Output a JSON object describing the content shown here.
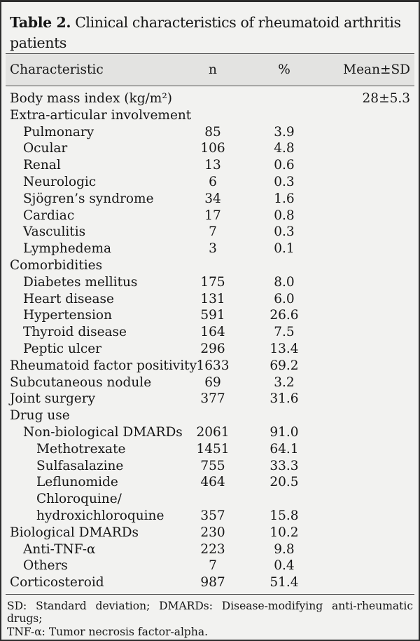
{
  "title": {
    "label": "Table 2.",
    "line1": "Clinical characteristics of rheumatoid arthritis",
    "line2": "patients"
  },
  "table": {
    "columns": {
      "characteristic": "Characteristic",
      "n": "n",
      "percent": "%",
      "mean_sd": "Mean±SD"
    },
    "rows": [
      {
        "label": "Body mass index (kg/m²)",
        "indent": 0,
        "n": "",
        "pct": "",
        "mean_sd": "28±5.3"
      },
      {
        "label": "Extra-articular involvement",
        "indent": 0,
        "n": "",
        "pct": "",
        "mean_sd": ""
      },
      {
        "label": "Pulmonary",
        "indent": 1,
        "n": "85",
        "pct": "3.9",
        "mean_sd": ""
      },
      {
        "label": "Ocular",
        "indent": 1,
        "n": "106",
        "pct": "4.8",
        "mean_sd": ""
      },
      {
        "label": "Renal",
        "indent": 1,
        "n": "13",
        "pct": "0.6",
        "mean_sd": ""
      },
      {
        "label": "Neurologic",
        "indent": 1,
        "n": "6",
        "pct": "0.3",
        "mean_sd": ""
      },
      {
        "label": "Sjögren’s syndrome",
        "indent": 1,
        "n": "34",
        "pct": "1.6",
        "mean_sd": ""
      },
      {
        "label": "Cardiac",
        "indent": 1,
        "n": "17",
        "pct": "0.8",
        "mean_sd": ""
      },
      {
        "label": "Vasculitis",
        "indent": 1,
        "n": "7",
        "pct": "0.3",
        "mean_sd": ""
      },
      {
        "label": "Lymphedema",
        "indent": 1,
        "n": "3",
        "pct": "0.1",
        "mean_sd": ""
      },
      {
        "label": "Comorbidities",
        "indent": 0,
        "n": "",
        "pct": "",
        "mean_sd": ""
      },
      {
        "label": "Diabetes mellitus",
        "indent": 1,
        "n": "175",
        "pct": "8.0",
        "mean_sd": ""
      },
      {
        "label": "Heart disease",
        "indent": 1,
        "n": "131",
        "pct": "6.0",
        "mean_sd": ""
      },
      {
        "label": "Hypertension",
        "indent": 1,
        "n": "591",
        "pct": "26.6",
        "mean_sd": ""
      },
      {
        "label": "Thyroid disease",
        "indent": 1,
        "n": "164",
        "pct": "7.5",
        "mean_sd": ""
      },
      {
        "label": "Peptic ulcer",
        "indent": 1,
        "n": "296",
        "pct": "13.4",
        "mean_sd": ""
      },
      {
        "label": "Rheumatoid factor positivity",
        "indent": 0,
        "n": "1633",
        "pct": "69.2",
        "mean_sd": ""
      },
      {
        "label": "Subcutaneous nodule",
        "indent": 0,
        "n": "69",
        "pct": "3.2",
        "mean_sd": ""
      },
      {
        "label": "Joint surgery",
        "indent": 0,
        "n": "377",
        "pct": "31.6",
        "mean_sd": ""
      },
      {
        "label": "Drug use",
        "indent": 0,
        "n": "",
        "pct": "",
        "mean_sd": ""
      },
      {
        "label": "Non-biological DMARDs",
        "indent": 1,
        "n": "2061",
        "pct": "91.0",
        "mean_sd": ""
      },
      {
        "label": "Methotrexate",
        "indent": 2,
        "n": "1451",
        "pct": "64.1",
        "mean_sd": ""
      },
      {
        "label": "Sulfasalazine",
        "indent": 2,
        "n": "755",
        "pct": "33.3",
        "mean_sd": ""
      },
      {
        "label": "Leflunomide",
        "indent": 2,
        "n": "464",
        "pct": "20.5",
        "mean_sd": ""
      },
      {
        "label": "Chloroquine/",
        "indent": 2,
        "n": "",
        "pct": "",
        "mean_sd": ""
      },
      {
        "label": "hydroxichloroquine",
        "indent": 2,
        "n": "357",
        "pct": "15.8",
        "mean_sd": ""
      },
      {
        "label": "Biological DMARDs",
        "indent": 0,
        "n": "230",
        "pct": "10.2",
        "mean_sd": ""
      },
      {
        "label": "Anti-TNF-α",
        "indent": 1,
        "n": "223",
        "pct": "9.8",
        "mean_sd": ""
      },
      {
        "label": "Others",
        "indent": 1,
        "n": "7",
        "pct": "0.4",
        "mean_sd": ""
      },
      {
        "label": "Corticosteroid",
        "indent": 0,
        "n": "987",
        "pct": "51.4",
        "mean_sd": ""
      }
    ]
  },
  "footnotes": {
    "line1": "SD: Standard deviation; DMARDs: Disease-modifying anti-rheumatic drugs;",
    "line2": "TNF-α: Tumor necrosis factor-alpha."
  },
  "colors": {
    "page_background": "#f2f2f0",
    "header_band": "#e3e3e1",
    "rule": "#4f4f4f",
    "outer_border": "#2d2d2d",
    "text": "#161616"
  }
}
